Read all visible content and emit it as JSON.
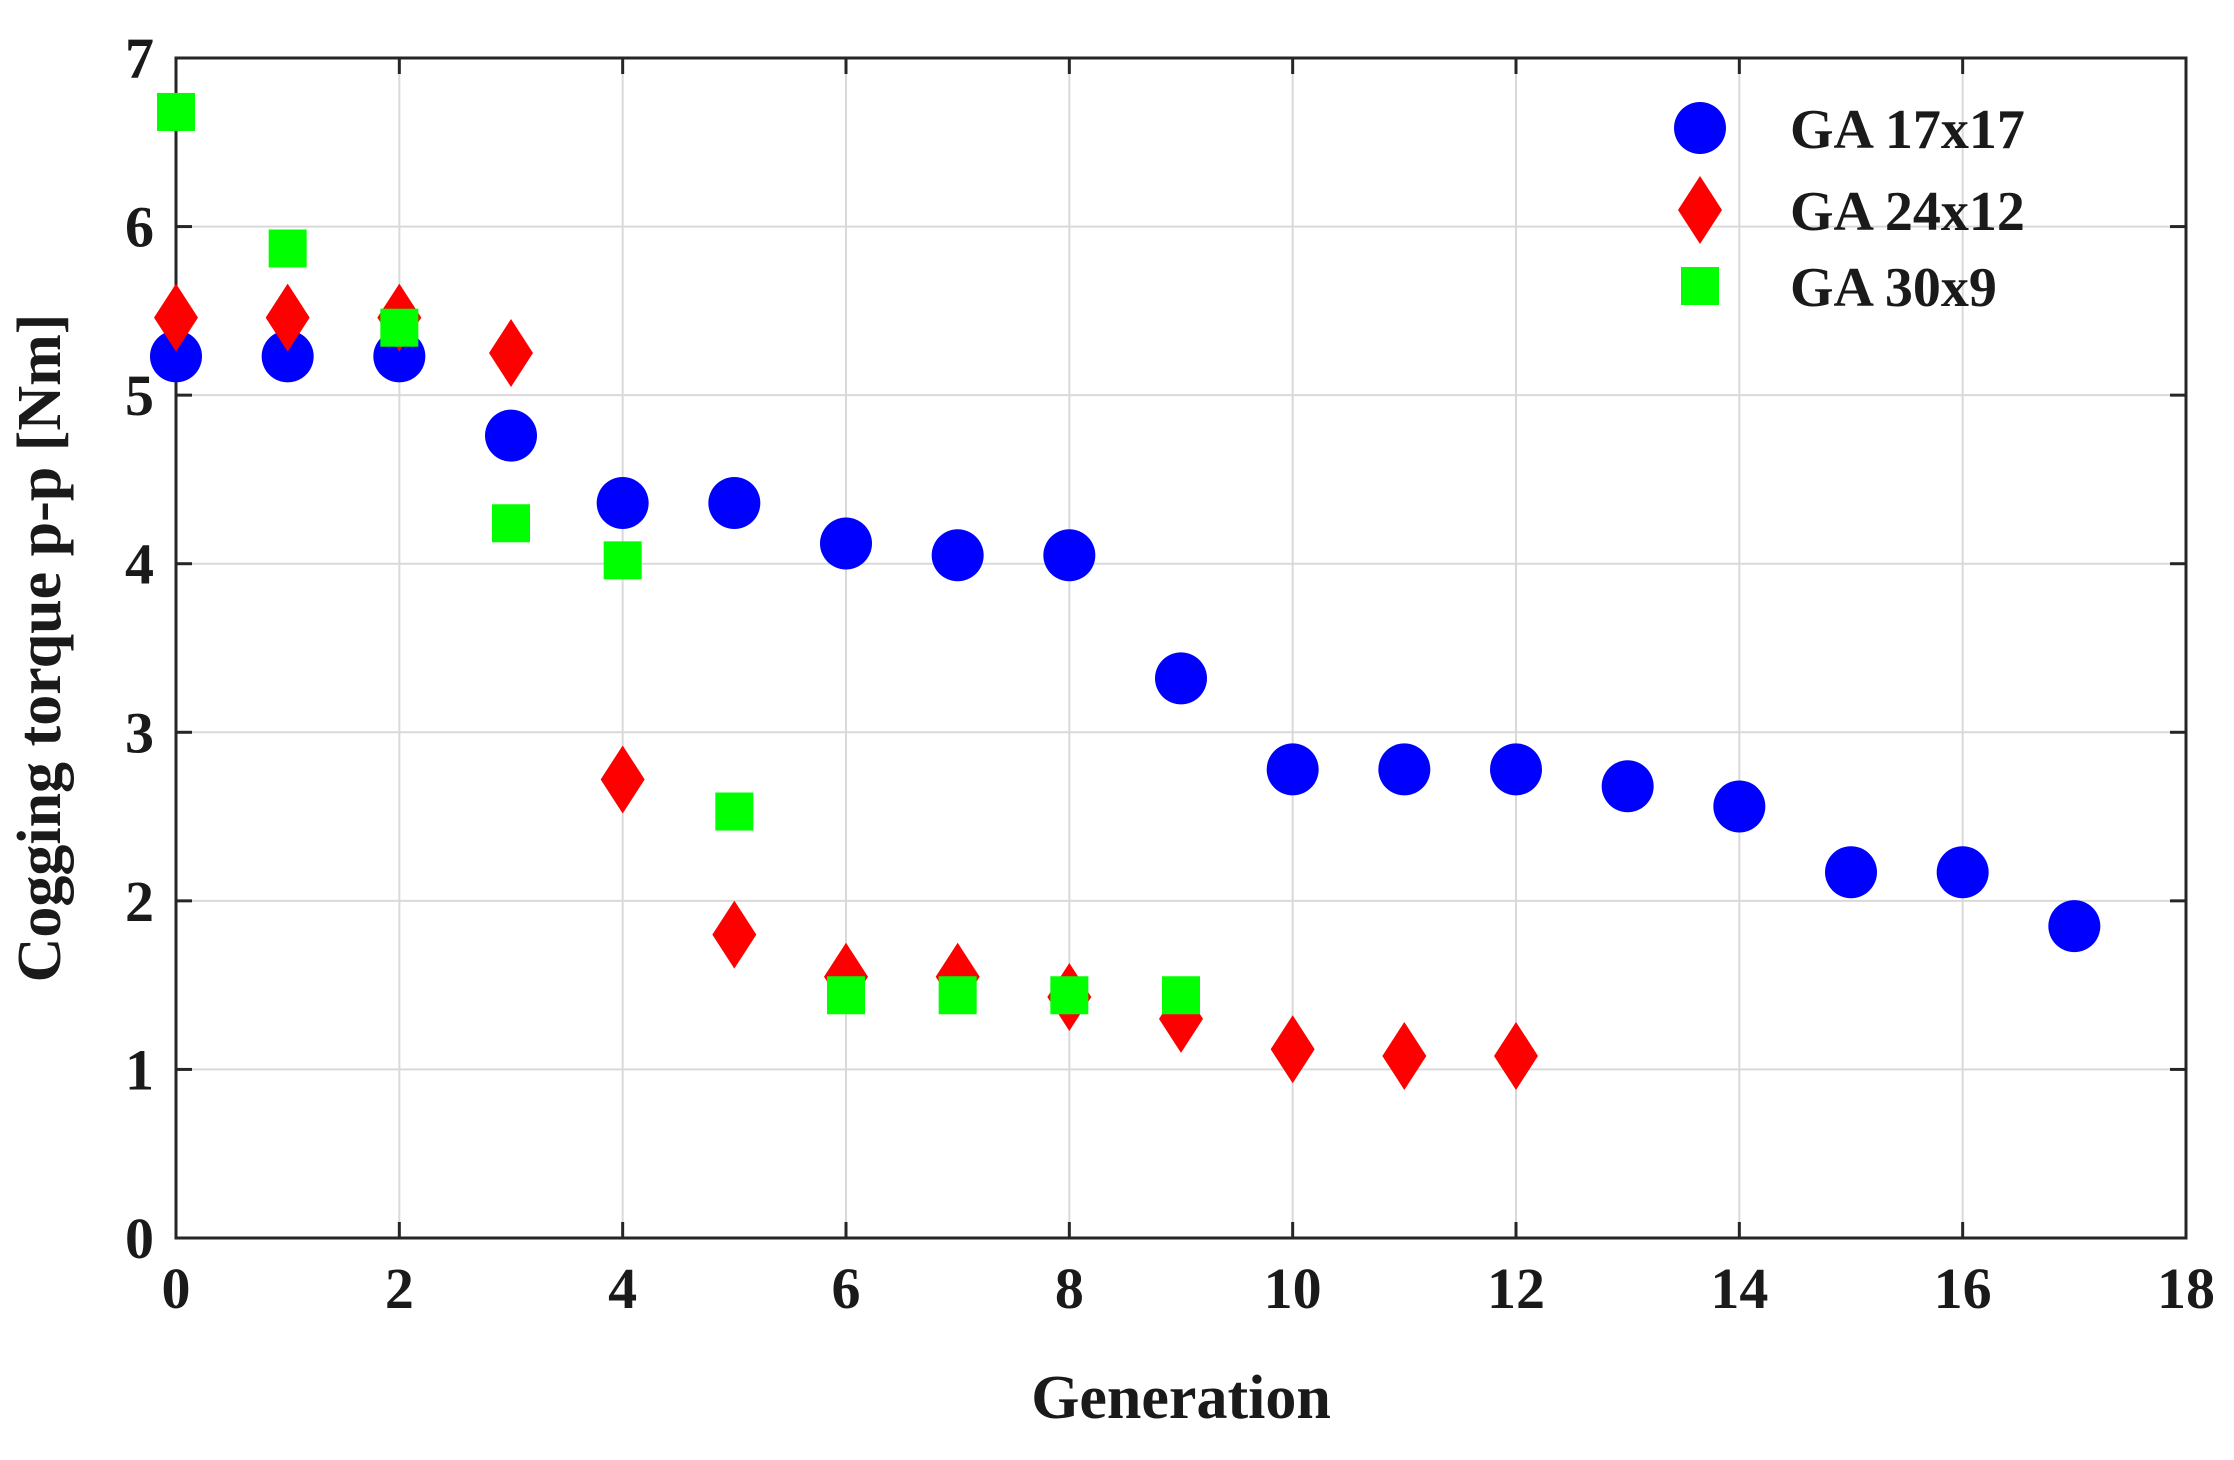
{
  "chart_data": {
    "type": "scatter",
    "title": "",
    "xlabel": "Generation",
    "ylabel": "Cogging torque p-p [Nm]",
    "xlim": [
      0,
      18
    ],
    "ylim": [
      0,
      7
    ],
    "xticks": [
      0,
      2,
      4,
      6,
      8,
      10,
      12,
      14,
      16,
      18
    ],
    "yticks": [
      0,
      1,
      2,
      3,
      4,
      5,
      6,
      7
    ],
    "xtick_labels": [
      "0",
      "2",
      "4",
      "6",
      "8",
      "10",
      "12",
      "14",
      "16",
      "18"
    ],
    "ytick_labels": [
      "0",
      "1",
      "2",
      "3",
      "4",
      "5",
      "6",
      "7"
    ],
    "grid": true,
    "legend_position": "top-right",
    "series": [
      {
        "name": "GA 17x17",
        "marker": "circle",
        "color": "#0000ff",
        "x": [
          0,
          1,
          2,
          3,
          4,
          5,
          6,
          7,
          8,
          9,
          10,
          11,
          12,
          13,
          14,
          15,
          16,
          17
        ],
        "y": [
          5.23,
          5.23,
          5.23,
          4.76,
          4.36,
          4.36,
          4.12,
          4.05,
          4.05,
          3.32,
          2.78,
          2.78,
          2.78,
          2.68,
          2.56,
          2.17,
          2.17,
          1.85
        ]
      },
      {
        "name": "GA 24x12",
        "marker": "diamond",
        "color": "#ff0000",
        "x": [
          0,
          1,
          2,
          3,
          4,
          5,
          6,
          7,
          8,
          9,
          10,
          11,
          12
        ],
        "y": [
          5.46,
          5.46,
          5.46,
          5.25,
          2.72,
          1.8,
          1.55,
          1.55,
          1.43,
          1.3,
          1.12,
          1.08,
          1.08
        ]
      },
      {
        "name": "GA 30x9",
        "marker": "square",
        "color": "#00ff00",
        "x": [
          0,
          1,
          2,
          4,
          3,
          5,
          6,
          7,
          8,
          9
        ],
        "y": [
          6.68,
          5.87,
          5.4,
          4.02,
          4.24,
          2.53,
          1.44,
          1.44,
          1.44,
          1.44
        ]
      }
    ]
  }
}
